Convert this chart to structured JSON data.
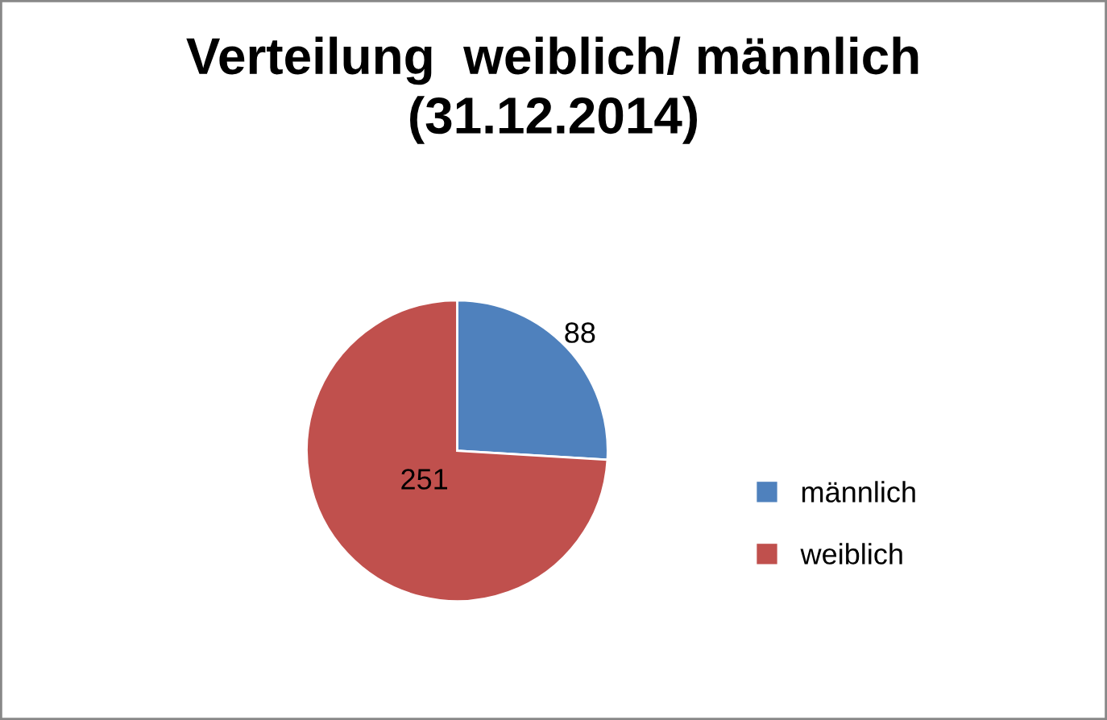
{
  "chart_data": {
    "type": "pie",
    "title": "Verteilung  weiblich/ männlich\n(31.12.2014)",
    "categories": [
      "männlich",
      "weiblich"
    ],
    "values": [
      88,
      251
    ],
    "colors": [
      "#4f81bd",
      "#c0504d"
    ],
    "data_labels": true,
    "legend": "right"
  }
}
